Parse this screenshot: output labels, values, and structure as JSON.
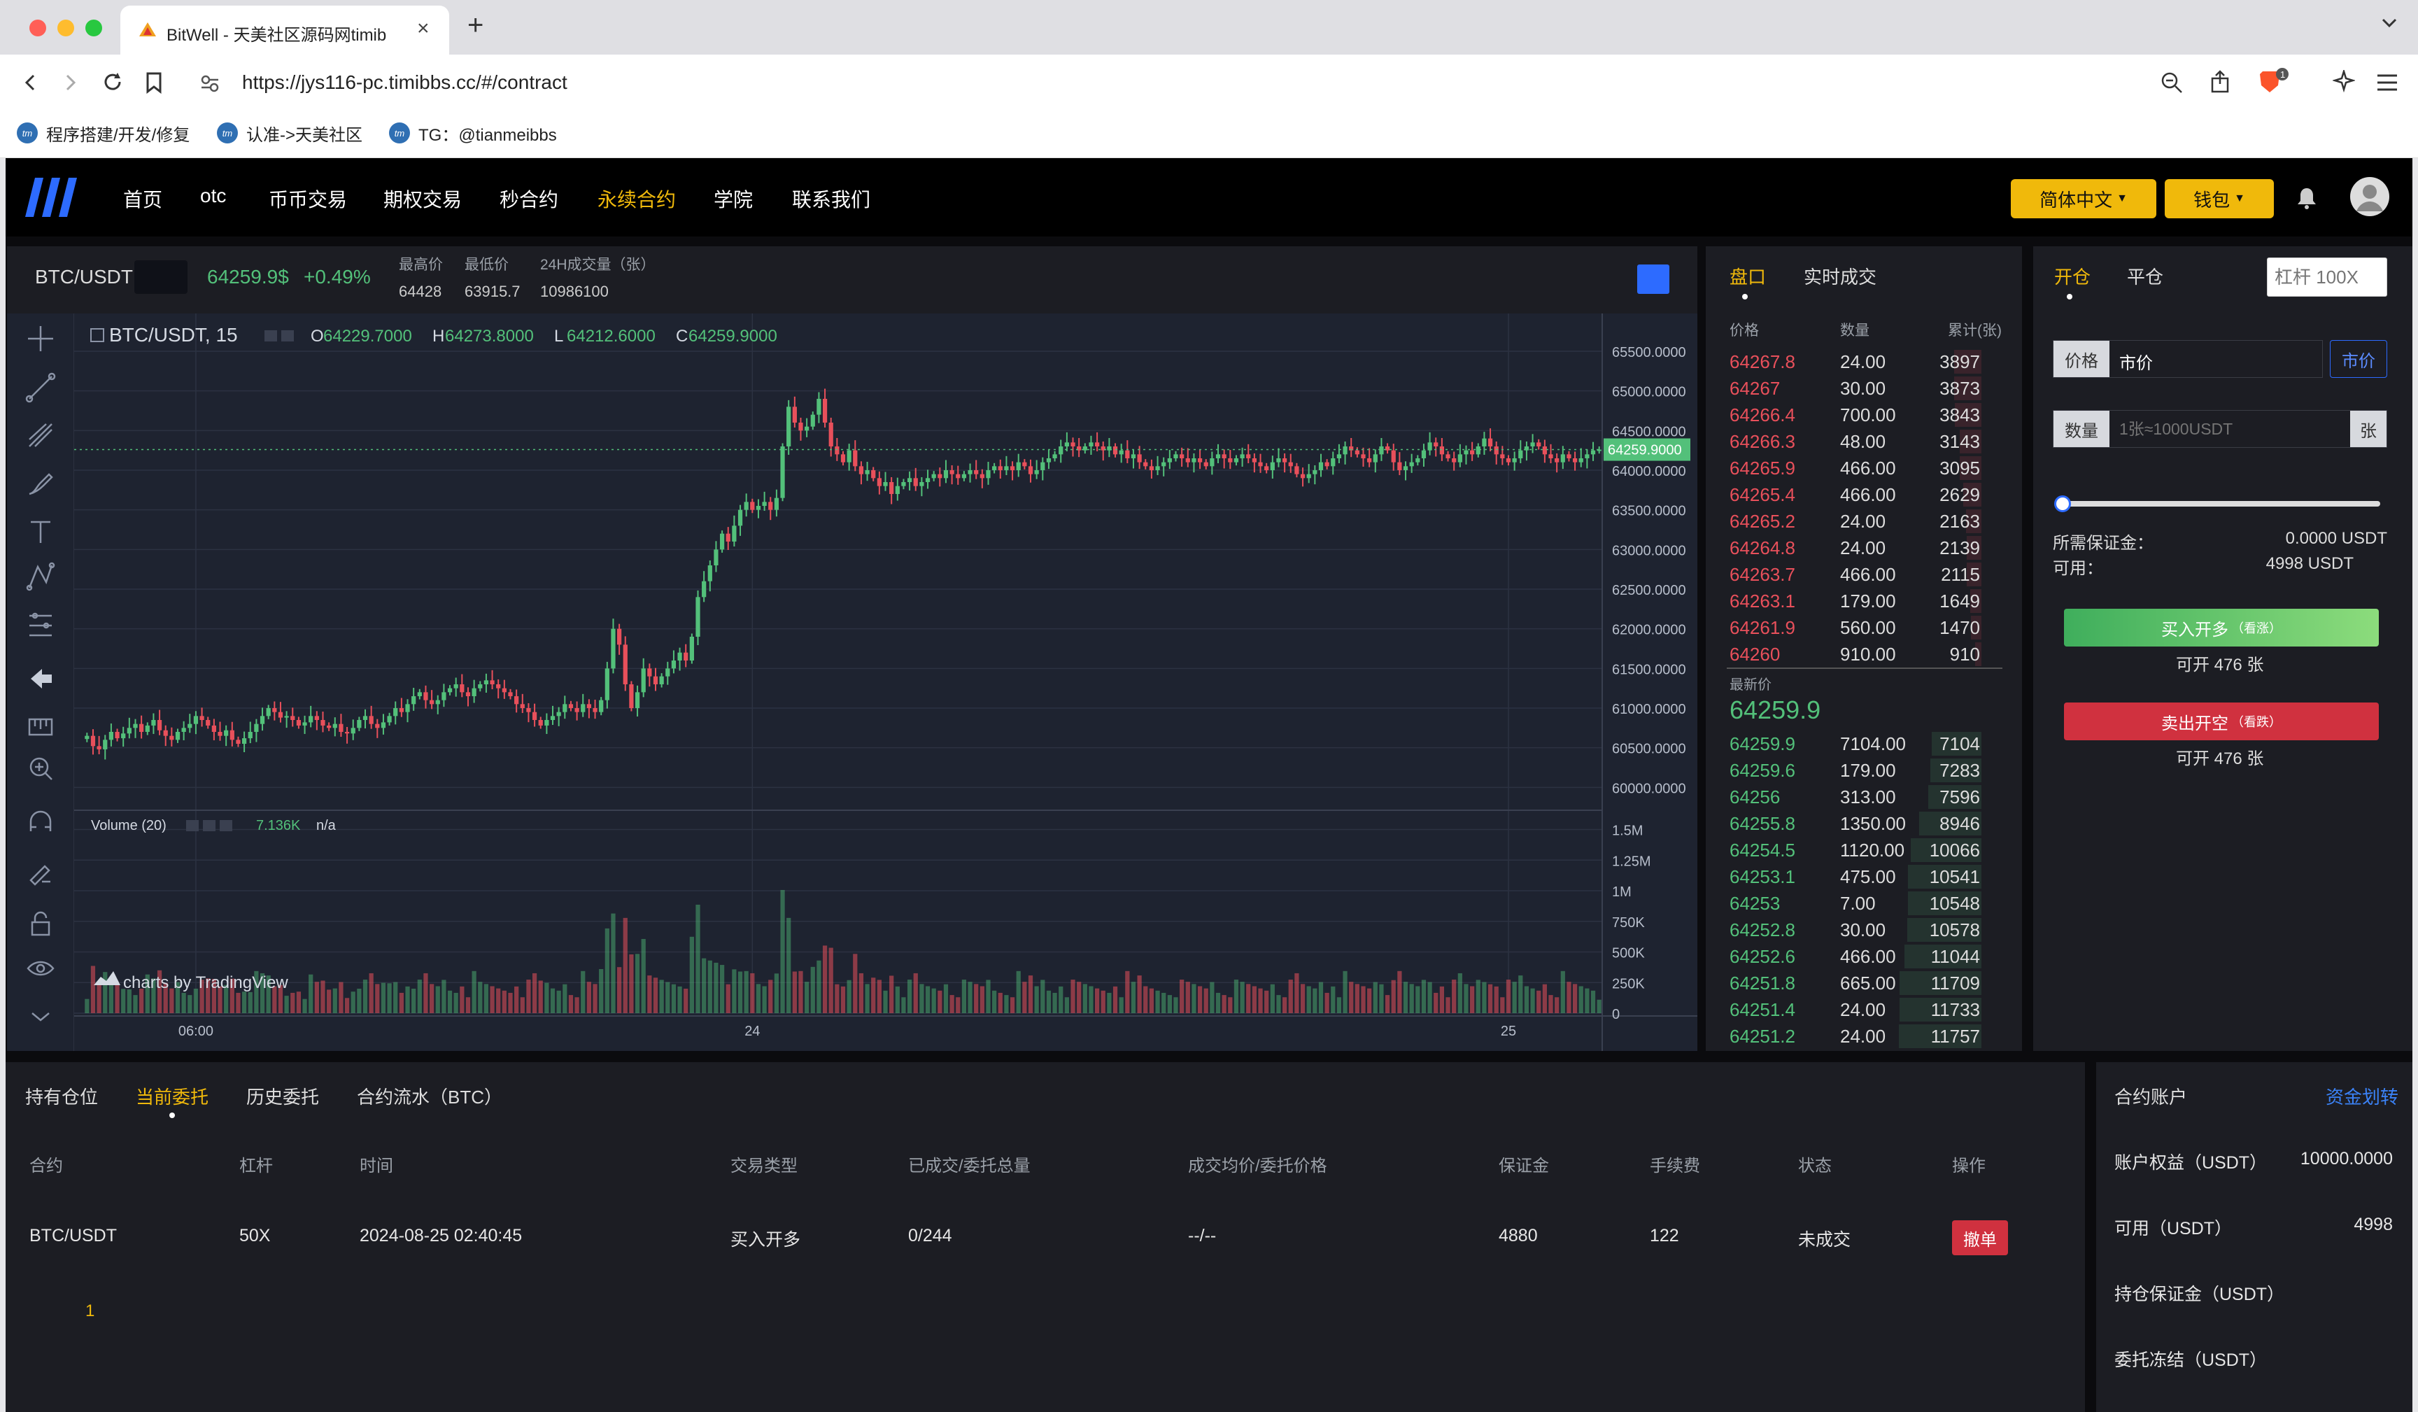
{
  "browser": {
    "tab_title": "BitWell - 天美社区源码网timib",
    "url": "https://jys116-pc.timibbs.cc/#/contract",
    "bookmarks": [
      "程序搭建/开发/修复",
      "认准->天美社区",
      "TG：@tianmeibbs"
    ]
  },
  "nav": {
    "items": [
      "首页",
      "otc",
      "币币交易",
      "期权交易",
      "秒合约",
      "永续合约",
      "学院",
      "联系我们"
    ],
    "active": "永续合约",
    "lang_label": "简体中文",
    "wallet_label": "钱包"
  },
  "ticker": {
    "pair": "BTC/USDT",
    "price": "64259.9$",
    "change": "+0.49%",
    "high_label": "最高价",
    "high": "64428",
    "low_label": "最低价",
    "low": "63915.7",
    "vol_label": "24H成交量（张）",
    "vol": "10986100"
  },
  "chart_data": {
    "type": "candlestick",
    "title": "BTC/USDT, 15",
    "ohlc_label": {
      "o": "64229.7000",
      "h": "64273.8000",
      "l": "64212.6000",
      "c": "64259.9000"
    },
    "last_price_label": "64259.9000",
    "y_ticks": [
      "65500.0000",
      "65000.0000",
      "64500.0000",
      "64000.0000",
      "63500.0000",
      "63000.0000",
      "62500.0000",
      "62000.0000",
      "61500.0000",
      "61000.0000",
      "60500.0000",
      "60000.0000"
    ],
    "ylim": [
      59800,
      65800
    ],
    "volume_label": "Volume (20)",
    "volume_value": "7.136K",
    "volume_na": "n/a",
    "vol_ticks": [
      "1.5M",
      "1.25M",
      "1M",
      "750K",
      "500K",
      "250K",
      "0"
    ],
    "vol_ylim": [
      0,
      1600000
    ],
    "x_ticks": [
      {
        "label": "06:00",
        "i": 18
      },
      {
        "label": "24",
        "i": 110
      },
      {
        "label": "25",
        "i": 235
      }
    ],
    "watermark": "charts by TradingView",
    "close_series": [
      60650,
      60520,
      60480,
      60600,
      60700,
      60620,
      60680,
      60750,
      60800,
      60700,
      60780,
      60850,
      60720,
      60650,
      60600,
      60700,
      60750,
      60800,
      60900,
      60850,
      60780,
      60700,
      60650,
      60720,
      60600,
      60550,
      60620,
      60700,
      60800,
      60900,
      61000,
      60950,
      60880,
      60900,
      60850,
      60780,
      60820,
      60900,
      60850,
      60780,
      60750,
      60800,
      60700,
      60680,
      60750,
      60850,
      60900,
      60800,
      60750,
      60820,
      60900,
      61000,
      60950,
      61050,
      61150,
      61200,
      61100,
      61050,
      61100,
      61200,
      61250,
      61300,
      61200,
      61150,
      61250,
      61300,
      61350,
      61300,
      61250,
      61200,
      61150,
      61050,
      61000,
      60950,
      60850,
      60780,
      60850,
      60900,
      60950,
      61050,
      61000,
      60950,
      61050,
      61000,
      60950,
      61100,
      61500,
      62000,
      61800,
      61300,
      61000,
      61200,
      61500,
      61400,
      61300,
      61400,
      61500,
      61600,
      61700,
      61600,
      61900,
      62400,
      62600,
      62800,
      63000,
      63200,
      63100,
      63300,
      63500,
      63600,
      63500,
      63550,
      63600,
      63500,
      63650,
      64300,
      64800,
      64600,
      64500,
      64550,
      64700,
      64900,
      64600,
      64300,
      64200,
      64100,
      64250,
      64050,
      63950,
      64000,
      63900,
      63800,
      63850,
      63700,
      63800,
      63850,
      63900,
      63800,
      63850,
      63900,
      63950,
      63900,
      64000,
      63950,
      63900,
      63950,
      64000,
      63950,
      63900,
      64000,
      64050,
      64000,
      64050,
      64000,
      64100,
      64050,
      63950,
      64000,
      64100,
      64150,
      64200,
      64300,
      64350,
      64300,
      64250,
      64300,
      64350,
      64300,
      64250,
      64300,
      64200,
      64250,
      64150,
      64200,
      64100,
      64050,
      64000,
      64050,
      64100,
      64150,
      64200,
      64150,
      64100,
      64150,
      64100,
      64050,
      64150,
      64200,
      64150,
      64100,
      64150,
      64200,
      64150,
      64100,
      64050,
      64000,
      64100,
      64150,
      64100,
      64050,
      63950,
      63900,
      63950,
      64000,
      64100,
      64050,
      64150,
      64200,
      64300,
      64250,
      64200,
      64150,
      64100,
      64200,
      64300,
      64250,
      64100,
      64000,
      64050,
      64100,
      64150,
      64250,
      64350,
      64300,
      64200,
      64150,
      64100,
      64200,
      64250,
      64200,
      64300,
      64400,
      64300,
      64200,
      64150,
      64100,
      64150,
      64250,
      64300,
      64350,
      64300,
      64200,
      64150,
      64100,
      64200,
      64150,
      64100,
      64150,
      64200,
      64250,
      64260
    ]
  },
  "orderbook": {
    "tabs": [
      "盘口",
      "实时成交"
    ],
    "headers": [
      "价格",
      "数量",
      "累计(张)"
    ],
    "asks": [
      [
        "64267.8",
        "24.00",
        "3897"
      ],
      [
        "64267",
        "30.00",
        "3873"
      ],
      [
        "64266.4",
        "700.00",
        "3843"
      ],
      [
        "64266.3",
        "48.00",
        "3143"
      ],
      [
        "64265.9",
        "466.00",
        "3095"
      ],
      [
        "64265.4",
        "466.00",
        "2629"
      ],
      [
        "64265.2",
        "24.00",
        "2163"
      ],
      [
        "64264.8",
        "24.00",
        "2139"
      ],
      [
        "64263.7",
        "466.00",
        "2115"
      ],
      [
        "64263.1",
        "179.00",
        "1649"
      ],
      [
        "64261.9",
        "560.00",
        "1470"
      ],
      [
        "64260",
        "910.00",
        "910"
      ]
    ],
    "last_label": "最新价",
    "last": "64259.9",
    "bids": [
      [
        "64259.9",
        "7104.00",
        "7104"
      ],
      [
        "64259.6",
        "179.00",
        "7283"
      ],
      [
        "64256",
        "313.00",
        "7596"
      ],
      [
        "64255.8",
        "1350.00",
        "8946"
      ],
      [
        "64254.5",
        "1120.00",
        "10066"
      ],
      [
        "64253.1",
        "475.00",
        "10541"
      ],
      [
        "64253",
        "7.00",
        "10548"
      ],
      [
        "64252.8",
        "30.00",
        "10578"
      ],
      [
        "64252.6",
        "466.00",
        "11044"
      ],
      [
        "64251.8",
        "665.00",
        "11709"
      ],
      [
        "64251.4",
        "24.00",
        "11733"
      ],
      [
        "64251.2",
        "24.00",
        "11757"
      ]
    ]
  },
  "trade": {
    "tabs": [
      "开仓",
      "平仓"
    ],
    "leverage_placeholder": "杠杆 100X",
    "price_label": "价格",
    "price_value": "市价",
    "market_btn": "市价",
    "qty_label": "数量",
    "qty_placeholder": "1张≈1000USDT",
    "qty_unit": "张",
    "margin_label": "所需保证金：",
    "margin_value": "0.0000 USDT",
    "avail_label": "可用：",
    "avail_value": "4998 USDT",
    "buy_label": "买入开多",
    "buy_sub": "（看涨）",
    "buy_avail": "可开 476 张",
    "sell_label": "卖出开空",
    "sell_sub": "（看跌）",
    "sell_avail": "可开 476 张"
  },
  "orders": {
    "tabs": [
      "持有仓位",
      "当前委托",
      "历史委托",
      "合约流水（BTC）"
    ],
    "active_tab": "当前委托",
    "headers": [
      "合约",
      "杠杆",
      "时间",
      "交易类型",
      "已成交/委托总量",
      "成交均价/委托价格",
      "保证金",
      "手续费",
      "状态",
      "操作"
    ],
    "rows": [
      {
        "pair": "BTC/USDT",
        "lev": "50X",
        "time": "2024-08-25 02:40:45",
        "type": "买入开多",
        "filled": "0/244",
        "avg": "--/--",
        "margin": "4880",
        "fee": "122",
        "status": "未成交",
        "action": "撤单"
      }
    ],
    "page": "1"
  },
  "account": {
    "title": "合约账户",
    "transfer": "资金划转",
    "rows": [
      {
        "label": "账户权益（USDT）",
        "value": "10000.0000"
      },
      {
        "label": "可用（USDT）",
        "value": "4998"
      },
      {
        "label": "持仓保证金（USDT）",
        "value": ""
      },
      {
        "label": "委托冻结（USDT）",
        "value": ""
      }
    ]
  },
  "colors": {
    "up": "#53c07a",
    "down": "#e8505b",
    "accent": "#f0b90b",
    "chart_bg": "#1e2330"
  }
}
